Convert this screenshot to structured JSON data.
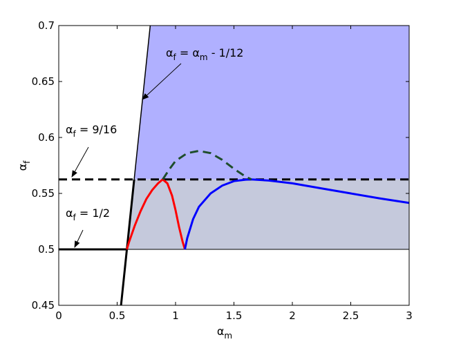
{
  "chart_data": {
    "type": "line",
    "x_label": [
      "α",
      "m"
    ],
    "y_label": [
      "α",
      "f"
    ],
    "xlim": [
      0,
      3
    ],
    "ylim": [
      0.45,
      0.7
    ],
    "xticks": [
      0,
      0.5,
      1,
      1.5,
      2,
      2.5,
      3
    ],
    "yticks": [
      0.45,
      0.5,
      0.55,
      0.6,
      0.65,
      0.7
    ],
    "regions": [
      {
        "color": "#b0b0ff",
        "x": [
          0.6458,
          0.7833,
          3,
          3
        ],
        "y": [
          0.5625,
          0.7,
          0.7,
          0.5625
        ]
      },
      {
        "color": "#c5c9dc",
        "x": [
          0.5833,
          0.6458,
          3,
          3
        ],
        "y": [
          0.5,
          0.5625,
          0.5625,
          0.5
        ]
      }
    ],
    "series": [
      {
        "color": "#000000",
        "width": 1,
        "dash": false,
        "x": [
          0.5833,
          3
        ],
        "y": [
          0.5,
          0.5
        ]
      },
      {
        "color": "#000000",
        "width": 3,
        "dash": false,
        "x": [
          0,
          0.5833
        ],
        "y": [
          0.5,
          0.5
        ]
      },
      {
        "color": "#000000",
        "width": 3,
        "dash": true,
        "x": [
          0,
          3
        ],
        "y": [
          0.5625,
          0.5625
        ]
      },
      {
        "color": "#000000",
        "width": 1.5,
        "dash": false,
        "x": [
          0.6458,
          0.7833
        ],
        "y": [
          0.5625,
          0.7
        ]
      },
      {
        "color": "#000000",
        "width": 3,
        "dash": false,
        "x": [
          0.5333,
          0.6458
        ],
        "y": [
          0.45,
          0.5625
        ]
      },
      {
        "color": "#ff0000",
        "width": 3,
        "dash": false,
        "x": [
          0.5833,
          0.6,
          0.65,
          0.7,
          0.75,
          0.8,
          0.85,
          0.89,
          0.93,
          0.97,
          1.0,
          1.03,
          1.06,
          1.08
        ],
        "y": [
          0.5,
          0.506,
          0.521,
          0.534,
          0.545,
          0.553,
          0.559,
          0.5625,
          0.559,
          0.548,
          0.535,
          0.52,
          0.507,
          0.5
        ]
      },
      {
        "color": "#0000ff",
        "width": 3,
        "dash": false,
        "x": [
          1.08,
          1.1,
          1.15,
          1.2,
          1.3,
          1.4,
          1.5,
          1.6,
          1.65,
          1.8,
          2.0,
          2.25,
          2.5,
          2.75,
          3
        ],
        "y": [
          0.5,
          0.51,
          0.527,
          0.538,
          0.55,
          0.557,
          0.561,
          0.5623,
          0.5625,
          0.5615,
          0.559,
          0.5545,
          0.55,
          0.5455,
          0.5415
        ]
      },
      {
        "color": "#1e4d2b",
        "width": 3,
        "dash": true,
        "x": [
          0.89,
          0.95,
          1.0,
          1.1,
          1.2,
          1.3,
          1.4,
          1.5,
          1.6,
          1.65
        ],
        "y": [
          0.5625,
          0.572,
          0.579,
          0.586,
          0.588,
          0.586,
          0.58,
          0.572,
          0.565,
          0.5625
        ]
      }
    ],
    "annotations": [
      {
        "parts": [
          "α",
          "f",
          " = α",
          "m",
          " - 1/12"
        ]
      },
      {
        "parts": [
          "α",
          "f",
          " = 9/16"
        ]
      },
      {
        "parts": [
          "α",
          "f",
          " = 1/2"
        ]
      }
    ]
  }
}
